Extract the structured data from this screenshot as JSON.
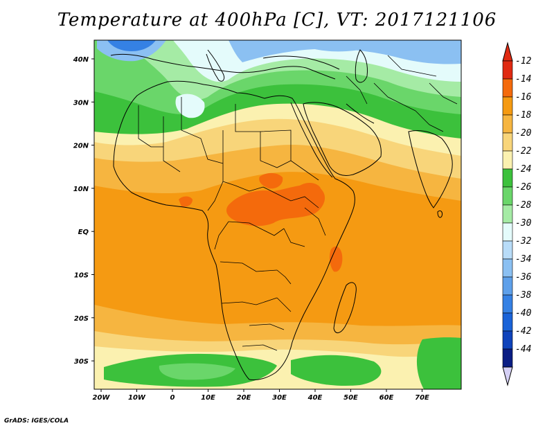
{
  "title": "Temperature at 400hPa [C], VT: 2017121106",
  "credit": "GrADS: IGES/COLA",
  "map": {
    "lon_ticks": [
      "20W",
      "10W",
      "0",
      "10E",
      "20E",
      "30E",
      "40E",
      "50E",
      "60E",
      "70E"
    ],
    "lat_ticks": [
      "40N",
      "30N",
      "20N",
      "10N",
      "EQ",
      "10S",
      "20S",
      "30S"
    ]
  },
  "colorbar": {
    "labels": [
      "-12",
      "-14",
      "-16",
      "-18",
      "-20",
      "-22",
      "-24",
      "-26",
      "-28",
      "-30",
      "-32",
      "-34",
      "-36",
      "-38",
      "-40",
      "-42",
      "-44"
    ],
    "colors": [
      "#e02a12",
      "#f46a0c",
      "#f59a12",
      "#f6b540",
      "#f8d57a",
      "#fbf1b0",
      "#3cc13c",
      "#6ad66a",
      "#a5eba5",
      "#e4fbfb",
      "#b8dcf8",
      "#8bc0f2",
      "#5ea0ea",
      "#3581e4",
      "#1a63d8",
      "#0f43bb",
      "#0a1d84"
    ],
    "top_arrow_color": "#e02a12",
    "bottom_arrow_color": "#d5d0f5"
  },
  "field_colors": {
    "warm_max": "#f46a0c",
    "warm": "#f59a12",
    "mild": "#f6b540",
    "cool_yellow": "#f8d57a",
    "pale_yellow": "#fbf1b0",
    "green": "#3cc13c",
    "light_green": "#6ad66a",
    "pale_green": "#a5eba5",
    "pale_cyan": "#e4fbfb",
    "light_blue": "#8bc0f2",
    "blue": "#3581e4"
  }
}
